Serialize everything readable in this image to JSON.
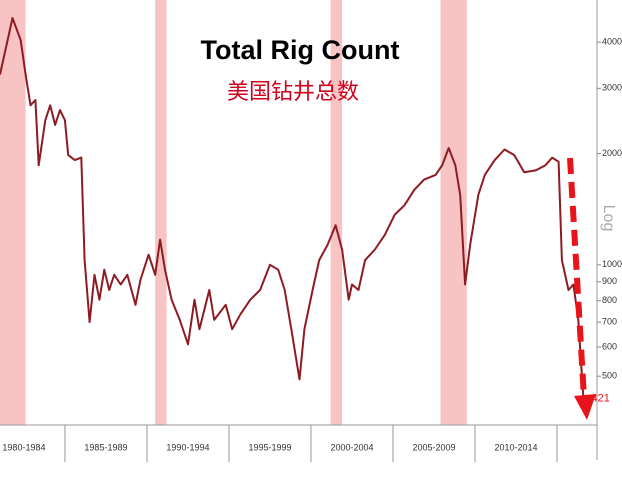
{
  "chart_data": {
    "type": "line",
    "title": "Total Rig Count",
    "subtitle": "美国钻井总数",
    "y_axis_label": "Log",
    "log_scale": true,
    "xlim": [
      1981.04,
      2017.44
    ],
    "ylim": [
      369,
      5200
    ],
    "yticks": [
      500,
      600,
      700,
      800,
      900,
      1000,
      2000,
      3000,
      4000
    ],
    "xticks": [
      {
        "value": 1982.5,
        "label": "1980-1984"
      },
      {
        "value": 1987.5,
        "label": "1985-1989"
      },
      {
        "value": 1992.5,
        "label": "1990-1994"
      },
      {
        "value": 1997.5,
        "label": "1995-1999"
      },
      {
        "value": 2002.5,
        "label": "2000-2004"
      },
      {
        "value": 2007.5,
        "label": "2005-2009"
      },
      {
        "value": 2012.5,
        "label": "2010-2014"
      }
    ],
    "recessions": [
      [
        1981.0,
        1982.6
      ],
      [
        1990.5,
        1991.2
      ],
      [
        2001.2,
        2001.9
      ],
      [
        2007.9,
        2009.5
      ]
    ],
    "recession_color": "#f6b9b9",
    "series": [
      {
        "name": "Total Rig Count",
        "color": "#8e1b22",
        "x": [
          1981.04,
          1981.8,
          1982.3,
          1982.6,
          1982.9,
          1983.2,
          1983.4,
          1983.8,
          1984.1,
          1984.4,
          1984.7,
          1985.0,
          1985.2,
          1985.6,
          1986.0,
          1986.2,
          1986.5,
          1986.8,
          1987.1,
          1987.4,
          1987.7,
          1988.0,
          1988.4,
          1988.8,
          1989.3,
          1989.6,
          1990.1,
          1990.5,
          1990.8,
          1991.1,
          1991.5,
          1992.0,
          1992.5,
          1992.9,
          1993.2,
          1993.8,
          1994.1,
          1994.8,
          1995.2,
          1995.7,
          1996.3,
          1996.9,
          1997.5,
          1998.0,
          1998.4,
          1998.8,
          1999.3,
          1999.6,
          2000.1,
          2000.5,
          2001.0,
          2001.5,
          2001.9,
          2002.3,
          2002.5,
          2002.9,
          2003.3,
          2003.9,
          2004.5,
          2005.1,
          2005.7,
          2006.3,
          2006.9,
          2007.6,
          2008.0,
          2008.4,
          2008.8,
          2009.1,
          2009.4,
          2009.7,
          2010.2,
          2010.6,
          2011.2,
          2011.8,
          2012.4,
          2013.0,
          2013.7,
          2014.3,
          2014.7,
          2015.1,
          2015.3,
          2015.7,
          2016.0,
          2016.3,
          2016.6,
          2016.8
        ],
        "values": [
          3270,
          4650,
          4050,
          3270,
          2700,
          2790,
          1860,
          2460,
          2700,
          2390,
          2620,
          2460,
          1980,
          1920,
          1950,
          1030,
          700,
          940,
          805,
          970,
          855,
          940,
          885,
          940,
          780,
          910,
          1065,
          940,
          1170,
          970,
          805,
          710,
          610,
          805,
          670,
          855,
          710,
          780,
          670,
          735,
          805,
          855,
          1000,
          970,
          855,
          670,
          490,
          670,
          855,
          1030,
          1130,
          1280,
          1100,
          805,
          885,
          855,
          1030,
          1100,
          1205,
          1365,
          1450,
          1595,
          1700,
          1750,
          1860,
          2070,
          1860,
          1545,
          885,
          1130,
          1545,
          1750,
          1920,
          2050,
          1980,
          1780,
          1800,
          1860,
          1950,
          1900,
          1030,
          855,
          885,
          710,
          445,
          421
        ]
      }
    ]
  }
}
